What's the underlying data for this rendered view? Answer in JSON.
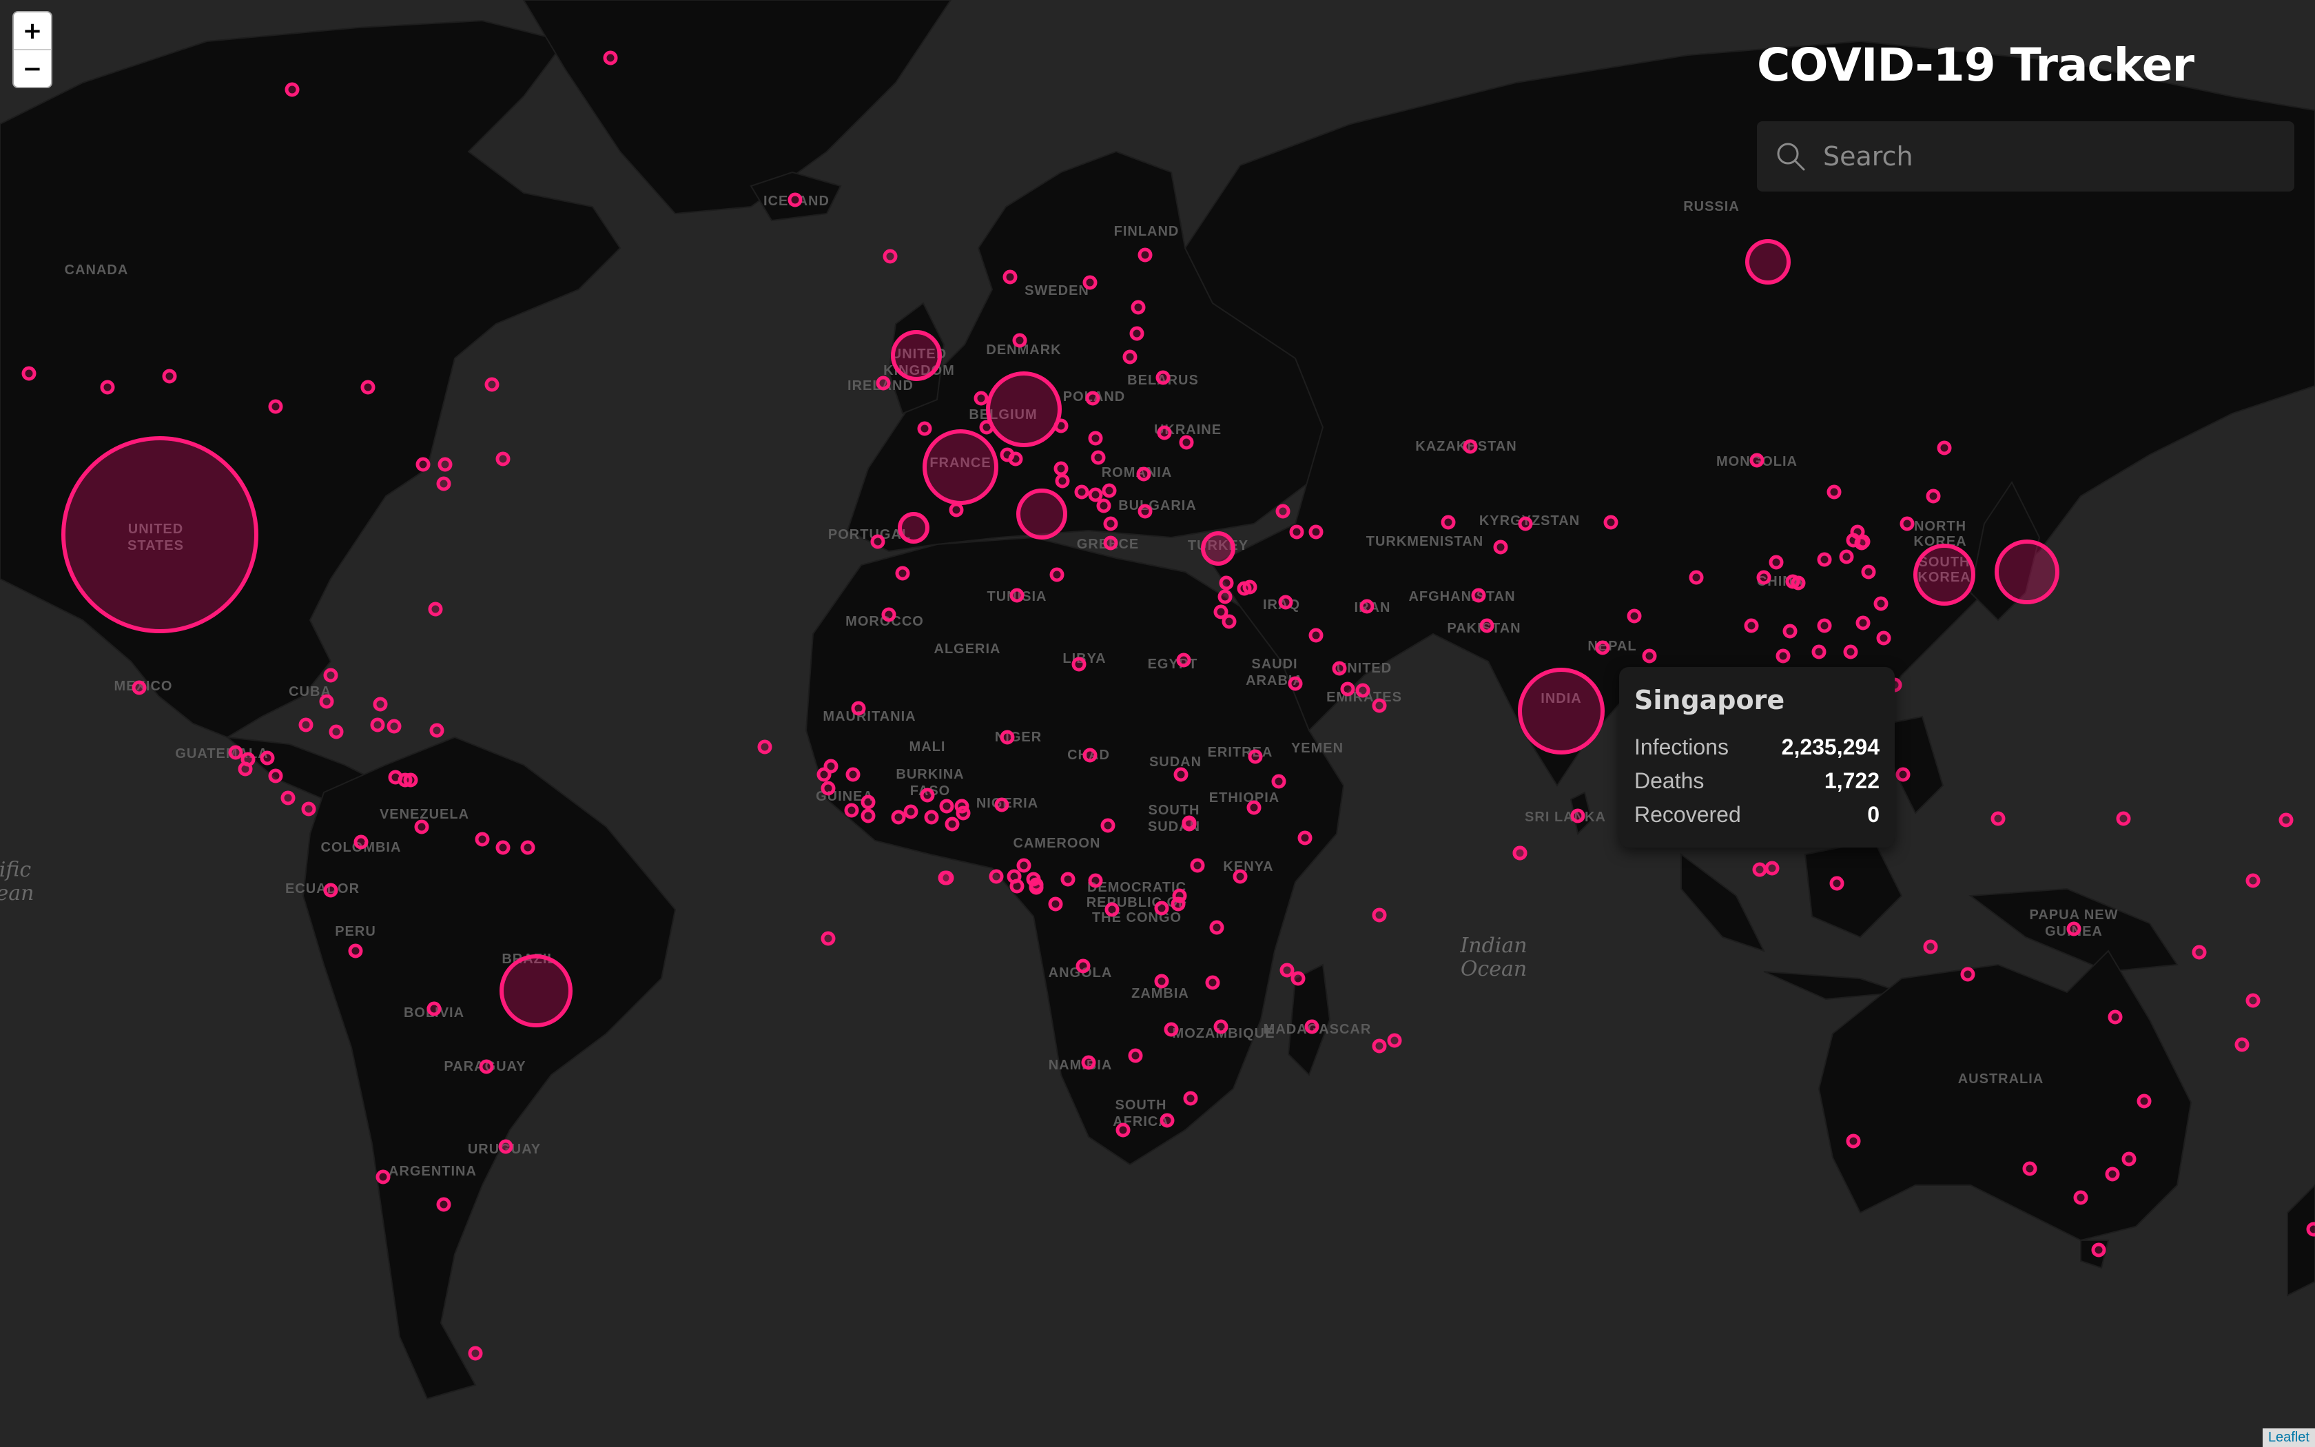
{
  "header": {
    "title": "COVID-19 Tracker"
  },
  "search": {
    "placeholder": "Search",
    "icon": "search-icon"
  },
  "zoom": {
    "in_label": "+",
    "out_label": "−"
  },
  "tooltip": {
    "country": "Singapore",
    "rows": [
      {
        "label": "Infections",
        "value": "2,235,294"
      },
      {
        "label": "Deaths",
        "value": "1,722"
      },
      {
        "label": "Recovered",
        "value": "0"
      }
    ]
  },
  "attribution": "Leaflet",
  "map_labels": {
    "countries": [
      "CANADA",
      "UNITED STATES",
      "MEXICO",
      "CUBA",
      "GUATEMALA",
      "VENEZUELA",
      "COLOMBIA",
      "ECUADOR",
      "PERU",
      "BRAZIL",
      "BOLIVIA",
      "PARAGUAY",
      "URUGUAY",
      "ARGENTINA",
      "ICELAND",
      "FINLAND",
      "SWEDEN",
      "DENMARK",
      "IRELAND",
      "UNITED KINGDOM",
      "BELGIUM",
      "FRANCE",
      "POLAND",
      "BELARUS",
      "UKRAINE",
      "ROMANIA",
      "BULGARIA",
      "GREECE",
      "PORTUGAL",
      "TURKEY",
      "TUNISIA",
      "MOROCCO",
      "ALGERIA",
      "LIBYA",
      "EGYPT",
      "MAURITANIA",
      "MALI",
      "NIGER",
      "CHAD",
      "SUDAN",
      "SOUTH SUDAN",
      "ERITREA",
      "ETHIOPIA",
      "YEMEN",
      "SAUDI ARABIA",
      "UNITED ARAB EMIRATES",
      "IRAN",
      "IRAQ",
      "AFGHANISTAN",
      "PAKISTAN",
      "INDIA",
      "NEPAL",
      "SRI LANKA",
      "KAZAKHSTAN",
      "KYRGYZSTAN",
      "TURKMENISTAN",
      "MONGOLIA",
      "RUSSIA",
      "CHINA",
      "SOUTH KOREA",
      "NORTH KOREA",
      "BURKINA FASO",
      "GUINEA",
      "NIGERIA",
      "CAMEROON",
      "DEMOCRATIC REPUBLIC OF THE CONGO",
      "KENYA",
      "ANGOLA",
      "ZAMBIA",
      "MOZAMBIQUE",
      "NAMIBIA",
      "SOUTH AFRICA",
      "MADAGASCAR",
      "PAPUA NEW GUINEA",
      "AUSTRALIA"
    ],
    "oceans": [
      "Indian Ocean",
      "Pacific Ocean"
    ]
  },
  "colors": {
    "marker": "#ff1a7a",
    "land": "#0c0c0c",
    "water": "#262626"
  }
}
